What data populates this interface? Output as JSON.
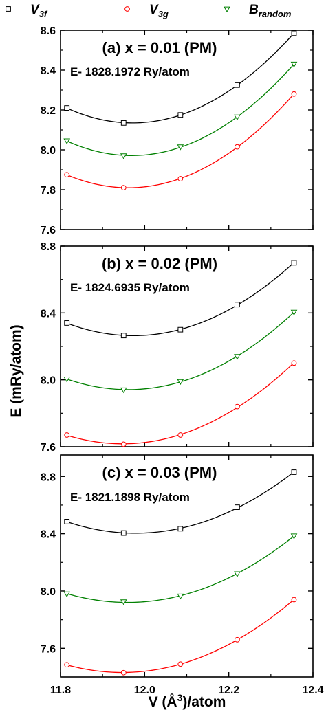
{
  "chart_data": {
    "type": "line",
    "ylabel": "E (mRy/atom)",
    "xlabel_parts": [
      "V (Å",
      "3",
      ")/atom"
    ],
    "xlim": [
      11.8,
      12.4
    ],
    "xticks": [
      "11.8",
      "12.0",
      "12.2",
      "12.4"
    ],
    "legend": [
      {
        "base": "V",
        "sub": "3f",
        "color": "#000000",
        "marker": "square"
      },
      {
        "base": "V",
        "sub": "3g",
        "color": "#ff0000",
        "marker": "circle"
      },
      {
        "base": "B",
        "sub": "random",
        "color": "#008000",
        "marker": "triangle-down"
      }
    ],
    "x": [
      11.815,
      11.95,
      12.085,
      12.22,
      12.355
    ],
    "panels": [
      {
        "title": "(a)  x = 0.01 (PM)",
        "note": "E- 1828.1972 Ry/atom",
        "ylim": [
          7.6,
          8.6
        ],
        "yticks": [
          "7.6",
          "7.8",
          "8.0",
          "8.2",
          "8.4",
          "8.6"
        ],
        "series": [
          {
            "name": "V3f",
            "values": [
              8.21,
              8.135,
              8.175,
              8.325,
              8.585
            ]
          },
          {
            "name": "V3g",
            "values": [
              7.875,
              7.81,
              7.855,
              8.015,
              8.28
            ]
          },
          {
            "name": "Brandom",
            "values": [
              8.045,
              7.97,
              8.015,
              8.165,
              8.43
            ]
          }
        ]
      },
      {
        "title": "(b)  x = 0.02 (PM)",
        "note": "E- 1824.6935 Ry/atom",
        "ylim": [
          7.6,
          8.8
        ],
        "yticks": [
          "7.6",
          "8.0",
          "8.4",
          "8.8"
        ],
        "series": [
          {
            "name": "V3f",
            "values": [
              8.34,
              8.265,
              8.3,
              8.45,
              8.7
            ]
          },
          {
            "name": "V3g",
            "values": [
              7.67,
              7.615,
              7.67,
              7.84,
              8.1
            ]
          },
          {
            "name": "Brandom",
            "values": [
              8.005,
              7.94,
              7.99,
              8.14,
              8.405
            ]
          }
        ]
      },
      {
        "title": "(c)  x = 0.03 (PM)",
        "note": "E- 1821.1898 Ry/atom",
        "ylim": [
          7.4,
          8.95
        ],
        "yticks": [
          "7.6",
          "8.0",
          "8.4",
          "8.8"
        ],
        "series": [
          {
            "name": "V3f",
            "values": [
              8.485,
              8.405,
              8.435,
              8.585,
              8.83
            ]
          },
          {
            "name": "V3g",
            "values": [
              7.485,
              7.43,
              7.49,
              7.66,
              7.94
            ]
          },
          {
            "name": "Brandom",
            "values": [
              7.98,
              7.925,
              7.965,
              8.12,
              8.385
            ]
          }
        ]
      }
    ]
  }
}
